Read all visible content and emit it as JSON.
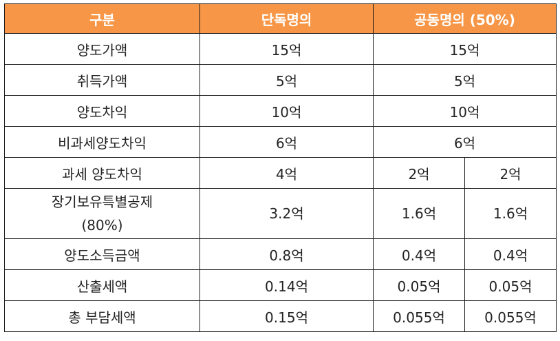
{
  "colors": {
    "header_bg": "#f79646",
    "header_text": "#ffffff",
    "border": "#1a1a1a"
  },
  "header": {
    "category": "구분",
    "single": "단독명의",
    "joint": "공동명의 (50%)"
  },
  "rows": [
    {
      "label": "양도가액",
      "single": "15억",
      "joint": "15억"
    },
    {
      "label": "취득가액",
      "single": "5억",
      "joint": "5억"
    },
    {
      "label": "양도차익",
      "single": "10억",
      "joint": "10억"
    },
    {
      "label": "비과세양도차익",
      "single": "6억",
      "joint": "6억"
    },
    {
      "label": "과세 양도차익",
      "single": "4억",
      "joint_a": "2억",
      "joint_b": "2억"
    },
    {
      "label_line1": "장기보유특별공제",
      "label_line2": "(80%)",
      "single": "3.2억",
      "joint_a": "1.6억",
      "joint_b": "1.6억"
    },
    {
      "label": "양도소득금액",
      "single": "0.8억",
      "joint_a": "0.4억",
      "joint_b": "0.4억"
    },
    {
      "label": "산출세액",
      "single": "0.14억",
      "joint_a": "0.05억",
      "joint_b": "0.05억"
    },
    {
      "label": "총 부담세액",
      "single": "0.15억",
      "joint_a": "0.055억",
      "joint_b": "0.055억"
    }
  ]
}
